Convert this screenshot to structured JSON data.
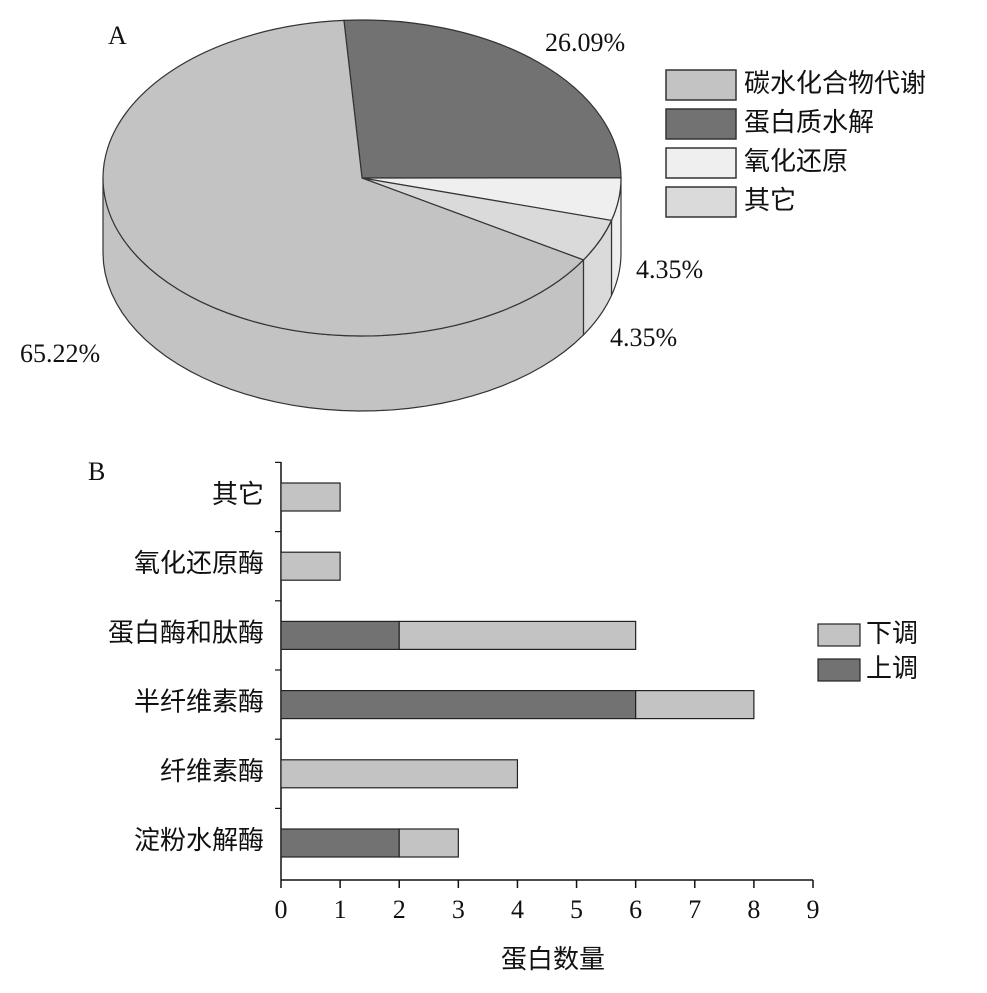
{
  "chart_data": [
    {
      "type": "pie",
      "panel": "A",
      "categories": [
        "碳水化合物代谢",
        "蛋白质水解",
        "氧化还原",
        "其它"
      ],
      "values": [
        65.22,
        26.09,
        4.35,
        4.35
      ],
      "value_labels": [
        "65.22%",
        "26.09%",
        "4.35%",
        "4.35%"
      ],
      "colors": [
        "#c3c3c3",
        "#727272",
        "#efefef",
        "#dadada"
      ]
    },
    {
      "type": "bar",
      "orientation": "horizontal",
      "stacked": true,
      "panel": "B",
      "xlabel": "蛋白数量",
      "categories": [
        "淀粉水解酶",
        "纤维素酶",
        "半纤维素酶",
        "蛋白酶和肽酶",
        "氧化还原酶",
        "其它"
      ],
      "series": [
        {
          "name": "上调",
          "color": "#727272",
          "values": [
            2,
            0,
            6,
            2,
            0,
            0
          ]
        },
        {
          "name": "下调",
          "color": "#c3c3c3",
          "values": [
            1,
            4,
            2,
            4,
            1,
            1
          ]
        }
      ],
      "xlim": [
        0,
        9
      ],
      "xticks": [
        0,
        1,
        2,
        3,
        4,
        5,
        6,
        7,
        8,
        9
      ]
    }
  ]
}
